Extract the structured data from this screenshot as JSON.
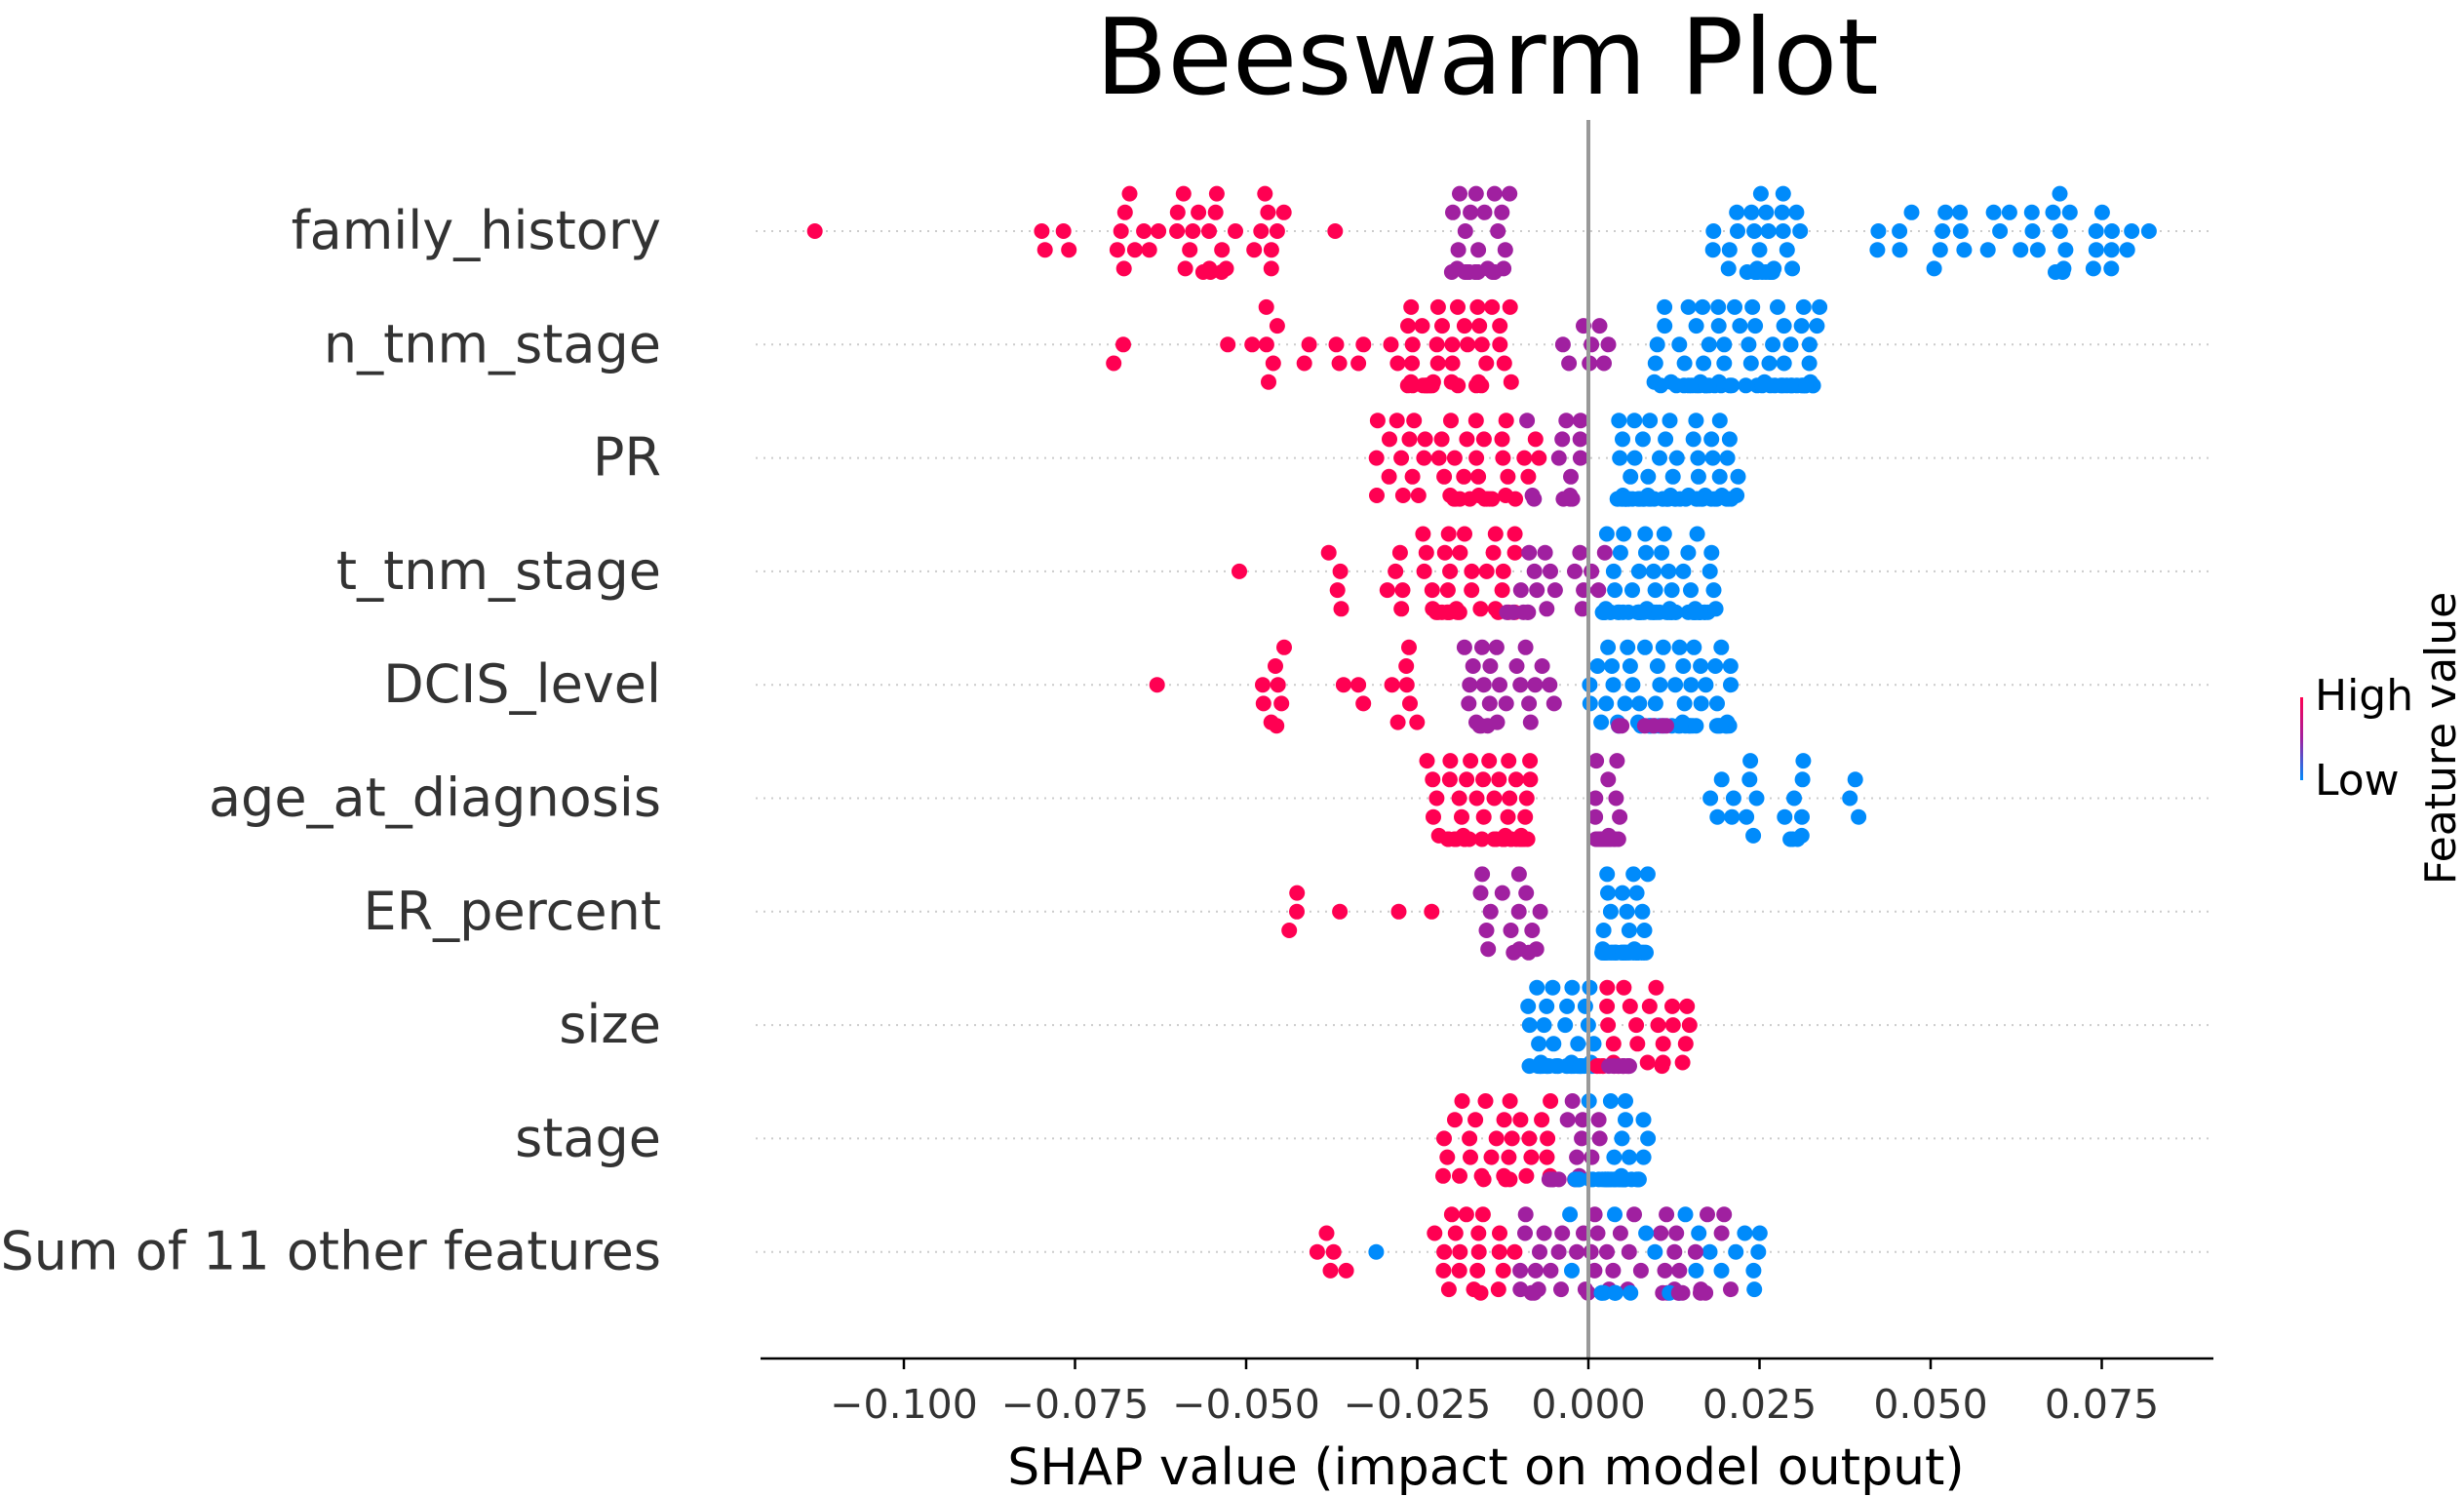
{
  "chart_data": {
    "type": "scatter",
    "subtype": "beeswarm",
    "title": "Beeswarm Plot",
    "xlabel": "SHAP value (impact on model output)",
    "xlim": [
      -0.1215,
      0.092
    ],
    "xticks": [
      -0.1,
      -0.075,
      -0.05,
      -0.025,
      0.0,
      0.025,
      0.05,
      0.075
    ],
    "xtick_labels": [
      "−0.100",
      "−0.075",
      "−0.050",
      "−0.025",
      "0.000",
      "0.025",
      "0.050",
      "0.075"
    ],
    "zero_line": 0,
    "colorbar": {
      "label": "Feature value",
      "high_label": "High",
      "low_label": "Low"
    },
    "colors": {
      "high": "#ff0052",
      "mid": "#a020a0",
      "low": "#008bfb"
    },
    "features": [
      {
        "name": "family_history",
        "groups": [
          {
            "color": "high",
            "n": 1,
            "range": [
              -0.113,
              -0.113
            ]
          },
          {
            "color": "high",
            "n": 14,
            "range": [
              -0.084,
              -0.06
            ]
          },
          {
            "color": "high",
            "n": 24,
            "range": [
              -0.062,
              -0.044
            ]
          },
          {
            "color": "high",
            "n": 1,
            "range": [
              -0.037,
              -0.037
            ]
          },
          {
            "color": "mid",
            "n": 30,
            "range": [
              -0.02,
              -0.011
            ]
          },
          {
            "color": "low",
            "n": 30,
            "range": [
              0.018,
              0.031
            ]
          },
          {
            "color": "low",
            "n": 38,
            "range": [
              0.042,
              0.082
            ]
          }
        ]
      },
      {
        "name": "n_tnm_stage",
        "groups": [
          {
            "color": "high",
            "n": 2,
            "range": [
              -0.072,
              -0.066
            ]
          },
          {
            "color": "high",
            "n": 14,
            "range": [
              -0.056,
              -0.028
            ]
          },
          {
            "color": "high",
            "n": 40,
            "range": [
              -0.028,
              -0.011
            ]
          },
          {
            "color": "mid",
            "n": 8,
            "range": [
              -0.004,
              0.005
            ]
          },
          {
            "color": "low",
            "n": 70,
            "range": [
              0.009,
              0.034
            ]
          }
        ]
      },
      {
        "name": "PR",
        "groups": [
          {
            "color": "high",
            "n": 45,
            "range": [
              -0.032,
              -0.007
            ]
          },
          {
            "color": "mid",
            "n": 14,
            "range": [
              -0.009,
              -0.001
            ]
          },
          {
            "color": "low",
            "n": 75,
            "range": [
              0.004,
              0.022
            ]
          }
        ]
      },
      {
        "name": "t_tnm_stage",
        "groups": [
          {
            "color": "high",
            "n": 1,
            "range": [
              -0.051,
              -0.051
            ]
          },
          {
            "color": "high",
            "n": 4,
            "range": [
              -0.039,
              -0.036
            ]
          },
          {
            "color": "high",
            "n": 40,
            "range": [
              -0.03,
              -0.01
            ]
          },
          {
            "color": "mid",
            "n": 20,
            "range": [
              -0.012,
              0.003
            ]
          },
          {
            "color": "low",
            "n": 70,
            "range": [
              0.002,
              0.019
            ]
          }
        ]
      },
      {
        "name": "DCIS_level",
        "groups": [
          {
            "color": "high",
            "n": 1,
            "range": [
              -0.063,
              -0.063
            ]
          },
          {
            "color": "high",
            "n": 8,
            "range": [
              -0.048,
              -0.044
            ]
          },
          {
            "color": "high",
            "n": 10,
            "range": [
              -0.036,
              -0.025
            ]
          },
          {
            "color": "mid",
            "n": 25,
            "range": [
              -0.02,
              -0.004
            ]
          },
          {
            "color": "low",
            "n": 60,
            "range": [
              0.0,
              0.021
            ]
          },
          {
            "color": "mid",
            "n": 6,
            "range": [
              0.004,
              0.012
            ]
          }
        ]
      },
      {
        "name": "age_at_diagnosis",
        "groups": [
          {
            "color": "high",
            "n": 50,
            "range": [
              -0.024,
              -0.008
            ]
          },
          {
            "color": "mid",
            "n": 25,
            "range": [
              0.001,
              0.005
            ]
          },
          {
            "color": "low",
            "n": 22,
            "range": [
              0.017,
              0.041
            ]
          }
        ]
      },
      {
        "name": "ER_percent",
        "groups": [
          {
            "color": "high",
            "n": 6,
            "range": [
              -0.044,
              -0.02
            ]
          },
          {
            "color": "mid",
            "n": 16,
            "range": [
              -0.016,
              -0.006
            ]
          },
          {
            "color": "low",
            "n": 55,
            "range": [
              0.002,
              0.009
            ]
          }
        ]
      },
      {
        "name": "size",
        "groups": [
          {
            "color": "low",
            "n": 45,
            "range": [
              -0.009,
              0.001
            ]
          },
          {
            "color": "high",
            "n": 30,
            "range": [
              0.001,
              0.016
            ]
          },
          {
            "color": "mid",
            "n": 10,
            "range": [
              0.002,
              0.006
            ]
          }
        ]
      },
      {
        "name": "stage",
        "groups": [
          {
            "color": "high",
            "n": 30,
            "range": [
              -0.022,
              -0.005
            ]
          },
          {
            "color": "mid",
            "n": 15,
            "range": [
              -0.006,
              0.002
            ]
          },
          {
            "color": "low",
            "n": 40,
            "range": [
              -0.002,
              0.009
            ]
          }
        ]
      },
      {
        "name": "Sum of 11 other features",
        "groups": [
          {
            "color": "high",
            "n": 5,
            "range": [
              -0.04,
              -0.035
            ]
          },
          {
            "color": "low",
            "n": 1,
            "range": [
              -0.031,
              -0.031
            ]
          },
          {
            "color": "high",
            "n": 20,
            "range": [
              -0.024,
              -0.01
            ]
          },
          {
            "color": "mid",
            "n": 40,
            "range": [
              -0.01,
              0.015
            ]
          },
          {
            "color": "low",
            "n": 25,
            "range": [
              -0.005,
              0.026
            ]
          },
          {
            "color": "mid",
            "n": 10,
            "range": [
              0.012,
              0.022
            ]
          }
        ]
      }
    ]
  }
}
